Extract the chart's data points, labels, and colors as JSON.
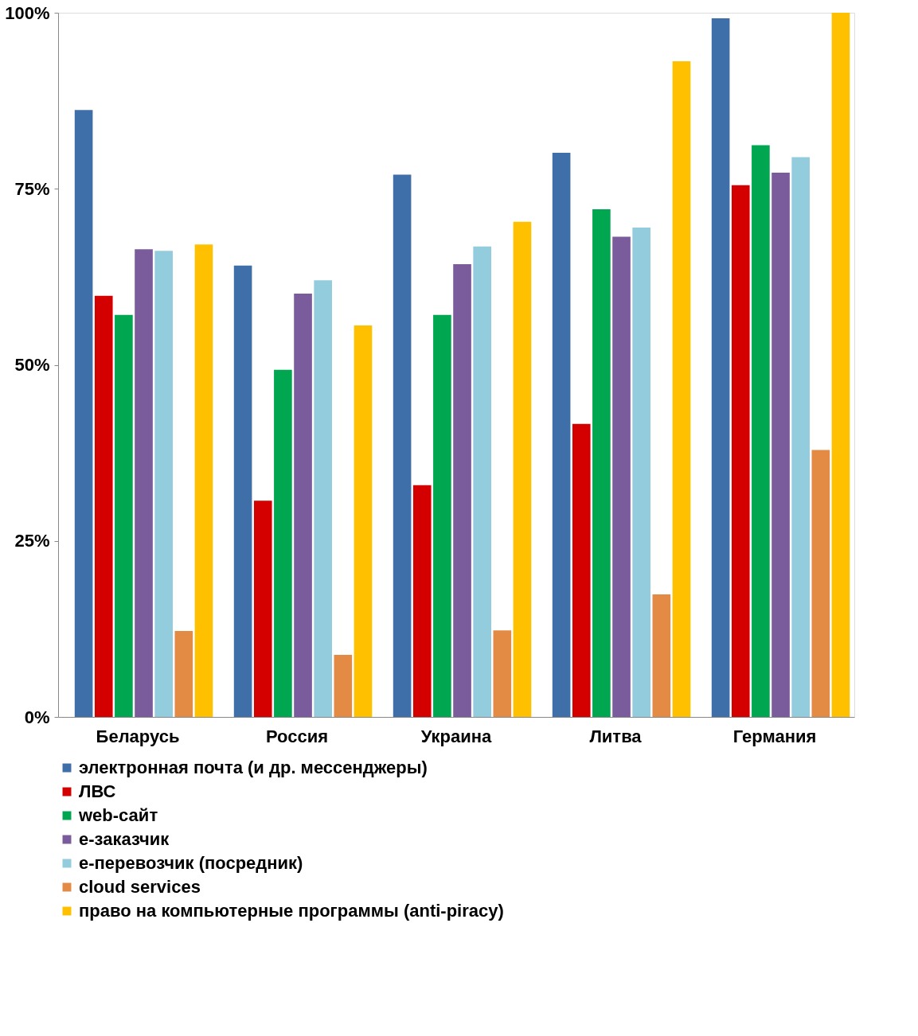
{
  "chart_data": {
    "type": "bar",
    "categories": [
      "Беларусь",
      "Россия",
      "Украина",
      "Литва",
      "Германия"
    ],
    "series": [
      {
        "name": "электронная почта (и др. мессенджеры)",
        "color": "#3f6fa8",
        "values": [
          86.2,
          64.1,
          77.0,
          80.1,
          99.2
        ]
      },
      {
        "name": "ЛВС",
        "color": "#d40000",
        "values": [
          59.8,
          30.7,
          32.9,
          41.6,
          75.5
        ]
      },
      {
        "name": "web-сайт",
        "color": "#00a650",
        "values": [
          57.1,
          49.3,
          57.1,
          72.1,
          81.2
        ]
      },
      {
        "name": "е-заказчик",
        "color": "#7a5b9c",
        "values": [
          66.4,
          60.1,
          64.3,
          68.2,
          77.3
        ]
      },
      {
        "name": "е-перевозчик (посредник)",
        "color": "#93cddd",
        "values": [
          66.2,
          62.0,
          66.8,
          69.5,
          79.5
        ]
      },
      {
        "name": "cloud services",
        "color": "#e38b45",
        "values": [
          12.2,
          8.8,
          12.3,
          17.4,
          37.9
        ]
      },
      {
        "name": "право на компьютерные программы (anti-piracy)",
        "color": "#ffc000",
        "values": [
          67.1,
          55.6,
          70.3,
          93.1,
          100
        ]
      }
    ],
    "ylim": [
      0,
      100
    ],
    "yticks": [
      {
        "value": 0,
        "label": "0%"
      },
      {
        "value": 25,
        "label": "25%"
      },
      {
        "value": 50,
        "label": "50%"
      },
      {
        "value": 75,
        "label": "75%"
      },
      {
        "value": 100,
        "label": "100%"
      }
    ],
    "grid": false,
    "legend": "bottom"
  }
}
